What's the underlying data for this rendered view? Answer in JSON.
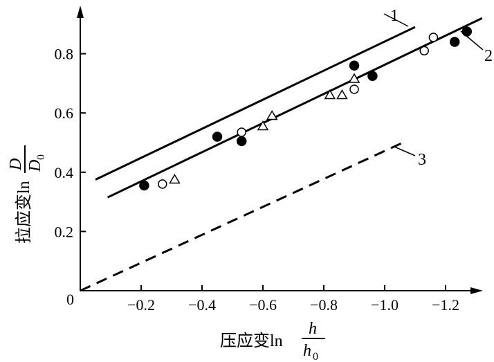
{
  "chart_data": {
    "type": "scatter",
    "xlabel": "压应变ln",
    "xlabel_fraction": {
      "numerator": "h",
      "denominator": "h",
      "denominator_subscript": "0"
    },
    "ylabel": "拉应变ln",
    "ylabel_fraction": {
      "numerator": "D",
      "denominator": "D",
      "denominator_subscript": "0"
    },
    "xlim": [
      0,
      -1.38
    ],
    "ylim": [
      0,
      0.94
    ],
    "x_ticks": [
      -0.2,
      -0.4,
      -0.6,
      -0.8,
      -1.0,
      -1.2
    ],
    "x_tick_labels": [
      "−0.2",
      "−0.4",
      "−0.6",
      "−0.8",
      "−1.0",
      "−1.2"
    ],
    "y_ticks": [
      0.2,
      0.4,
      0.6,
      0.8
    ],
    "y_tick_labels": [
      "0.2",
      "0.4",
      "0.6",
      "0.8"
    ],
    "origin_label": "0",
    "grid": false,
    "lines": [
      {
        "label": "1",
        "style": "solid",
        "x": [
          -0.05,
          -1.1
        ],
        "y": [
          0.375,
          0.89
        ]
      },
      {
        "label": "2",
        "style": "solid",
        "x": [
          -0.09,
          -1.32
        ],
        "y": [
          0.315,
          0.92
        ]
      },
      {
        "label": "3",
        "style": "dashed",
        "x": [
          0.0,
          -1.06
        ],
        "y": [
          0.0,
          0.5
        ]
      }
    ],
    "points": {
      "filled_circle": {
        "x": [
          -0.21,
          -0.45,
          -0.53,
          -0.9,
          -0.96,
          -1.23,
          -1.27
        ],
        "y": [
          0.355,
          0.52,
          0.505,
          0.76,
          0.725,
          0.84,
          0.875
        ]
      },
      "open_circle": {
        "x": [
          -0.27,
          -0.53,
          -0.9,
          -1.13,
          -1.16
        ],
        "y": [
          0.36,
          0.535,
          0.68,
          0.81,
          0.855
        ]
      },
      "open_triangle": {
        "x": [
          -0.31,
          -0.6,
          -0.63,
          -0.82,
          -0.86,
          -0.9
        ],
        "y": [
          0.375,
          0.555,
          0.59,
          0.66,
          0.66,
          0.715
        ]
      }
    }
  }
}
